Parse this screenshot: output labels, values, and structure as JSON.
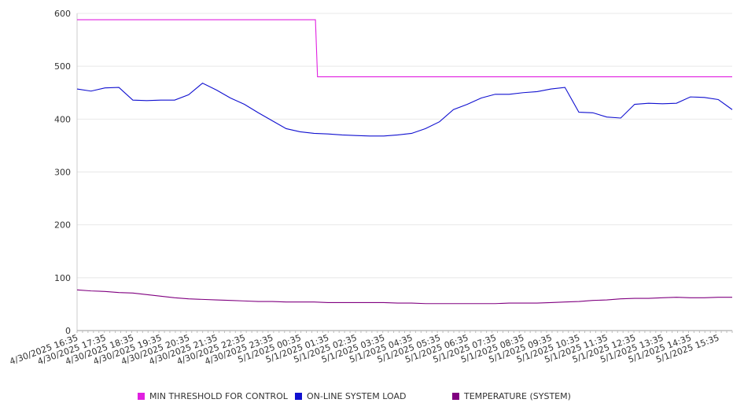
{
  "chart_data": {
    "type": "line",
    "title": "",
    "xlabel": "",
    "ylabel": "",
    "ylim": [
      0,
      600
    ],
    "y_ticks": [
      0,
      100,
      200,
      300,
      400,
      500,
      600
    ],
    "grid": true,
    "legend_position": "bottom",
    "x_tick_labels": [
      "4/30/2025 16:35",
      "4/30/2025 17:35",
      "4/30/2025 18:35",
      "4/30/2025 19:35",
      "4/30/2025 20:35",
      "4/30/2025 21:35",
      "4/30/2025 22:35",
      "4/30/2025 23:35",
      "5/1/2025 00:35",
      "5/1/2025 01:35",
      "5/1/2025 02:35",
      "5/1/2025 03:35",
      "5/1/2025 04:35",
      "5/1/2025 05:35",
      "5/1/2025 06:35",
      "5/1/2025 07:35",
      "5/1/2025 08:35",
      "5/1/2025 09:35",
      "5/1/2025 10:35",
      "5/1/2025 11:35",
      "5/1/2025 12:35",
      "5/1/2025 13:35",
      "5/1/2025 14:35",
      "5/1/2025 15:35"
    ],
    "x": [
      "4/30/2025 16:35",
      "4/30/2025 17:05",
      "4/30/2025 17:35",
      "4/30/2025 18:05",
      "4/30/2025 18:35",
      "4/30/2025 19:05",
      "4/30/2025 19:35",
      "4/30/2025 20:05",
      "4/30/2025 20:35",
      "4/30/2025 21:05",
      "4/30/2025 21:35",
      "4/30/2025 22:05",
      "4/30/2025 22:35",
      "4/30/2025 23:05",
      "4/30/2025 23:35",
      "5/1/2025 00:05",
      "5/1/2025 00:35",
      "5/1/2025 01:05",
      "5/1/2025 01:35",
      "5/1/2025 02:05",
      "5/1/2025 02:35",
      "5/1/2025 03:05",
      "5/1/2025 03:35",
      "5/1/2025 04:05",
      "5/1/2025 04:35",
      "5/1/2025 05:05",
      "5/1/2025 05:35",
      "5/1/2025 06:05",
      "5/1/2025 06:35",
      "5/1/2025 07:05",
      "5/1/2025 07:35",
      "5/1/2025 08:05",
      "5/1/2025 08:35",
      "5/1/2025 09:05",
      "5/1/2025 09:35",
      "5/1/2025 10:05",
      "5/1/2025 10:35",
      "5/1/2025 11:05",
      "5/1/2025 11:35",
      "5/1/2025 12:05",
      "5/1/2025 12:35",
      "5/1/2025 13:05",
      "5/1/2025 13:35",
      "5/1/2025 14:05",
      "5/1/2025 14:35",
      "5/1/2025 15:05",
      "5/1/2025 15:35",
      "5/1/2025 16:05"
    ],
    "series": [
      {
        "name": "MIN THRESHOLD FOR CONTROL",
        "color": "#e020e0",
        "values": [
          588,
          588,
          588,
          588,
          588,
          588,
          588,
          588,
          588,
          588,
          588,
          588,
          588,
          588,
          588,
          588,
          588,
          588,
          480,
          480,
          480,
          480,
          480,
          480,
          480,
          480,
          480,
          480,
          480,
          480,
          480,
          480,
          480,
          480,
          480,
          480,
          480,
          480,
          480,
          480,
          480,
          480,
          480,
          480,
          480,
          480,
          480,
          480
        ]
      },
      {
        "name": "ON-LINE SYSTEM LOAD",
        "color": "#1010d0",
        "values": [
          457,
          453,
          459,
          460,
          436,
          435,
          436,
          436,
          446,
          468,
          455,
          440,
          428,
          412,
          397,
          382,
          376,
          373,
          372,
          370,
          369,
          368,
          368,
          370,
          373,
          382,
          395,
          418,
          428,
          440,
          447,
          447,
          450,
          452,
          457,
          460,
          413,
          412,
          404,
          402,
          428,
          430,
          429,
          430,
          442,
          441,
          437,
          418
        ]
      },
      {
        "name": "TEMPERATURE (SYSTEM)",
        "color": "#800080",
        "values": [
          77,
          75,
          74,
          72,
          71,
          68,
          65,
          62,
          60,
          59,
          58,
          57,
          56,
          55,
          55,
          54,
          54,
          54,
          53,
          53,
          53,
          53,
          53,
          52,
          52,
          51,
          51,
          51,
          51,
          51,
          51,
          52,
          52,
          52,
          53,
          54,
          55,
          57,
          58,
          60,
          61,
          61,
          62,
          63,
          62,
          62,
          63,
          63
        ]
      }
    ]
  }
}
